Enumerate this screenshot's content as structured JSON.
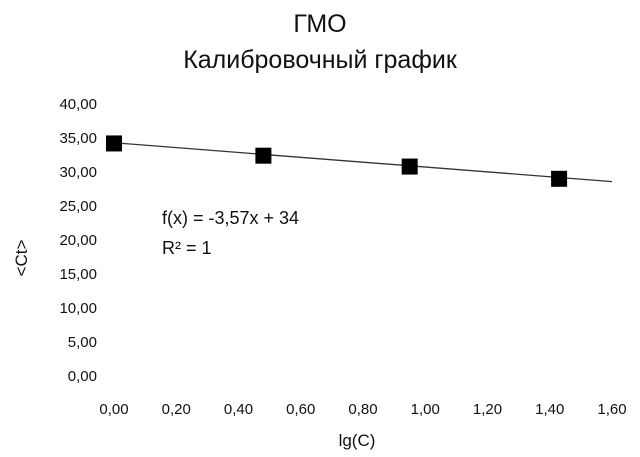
{
  "chart_data": {
    "type": "scatter",
    "title": "ГМО",
    "subtitle": "Калибровочный график",
    "xlabel": "lg(C)",
    "ylabel": "<Ct>",
    "xlim": [
      0,
      1.6
    ],
    "ylim": [
      0,
      40
    ],
    "x_ticks": [
      "0,00",
      "0,20",
      "0,40",
      "0,60",
      "0,80",
      "1,00",
      "1,20",
      "1,40",
      "1,60"
    ],
    "y_ticks": [
      "0,00",
      "5,00",
      "10,00",
      "15,00",
      "20,00",
      "25,00",
      "30,00",
      "35,00",
      "40,00"
    ],
    "points": [
      {
        "x": 0.0,
        "y": 34.2
      },
      {
        "x": 0.48,
        "y": 32.4
      },
      {
        "x": 0.95,
        "y": 30.8
      },
      {
        "x": 1.43,
        "y": 29.0
      }
    ],
    "trendline": {
      "slope": -3.57,
      "intercept": 34.3,
      "x_range": [
        0,
        1.6
      ]
    },
    "equation": "f(x) = -3,57x + 34",
    "r_squared": "R² = 1",
    "grid": false,
    "legend": "none",
    "marker_color": "#000000",
    "line_color": "#333333"
  }
}
